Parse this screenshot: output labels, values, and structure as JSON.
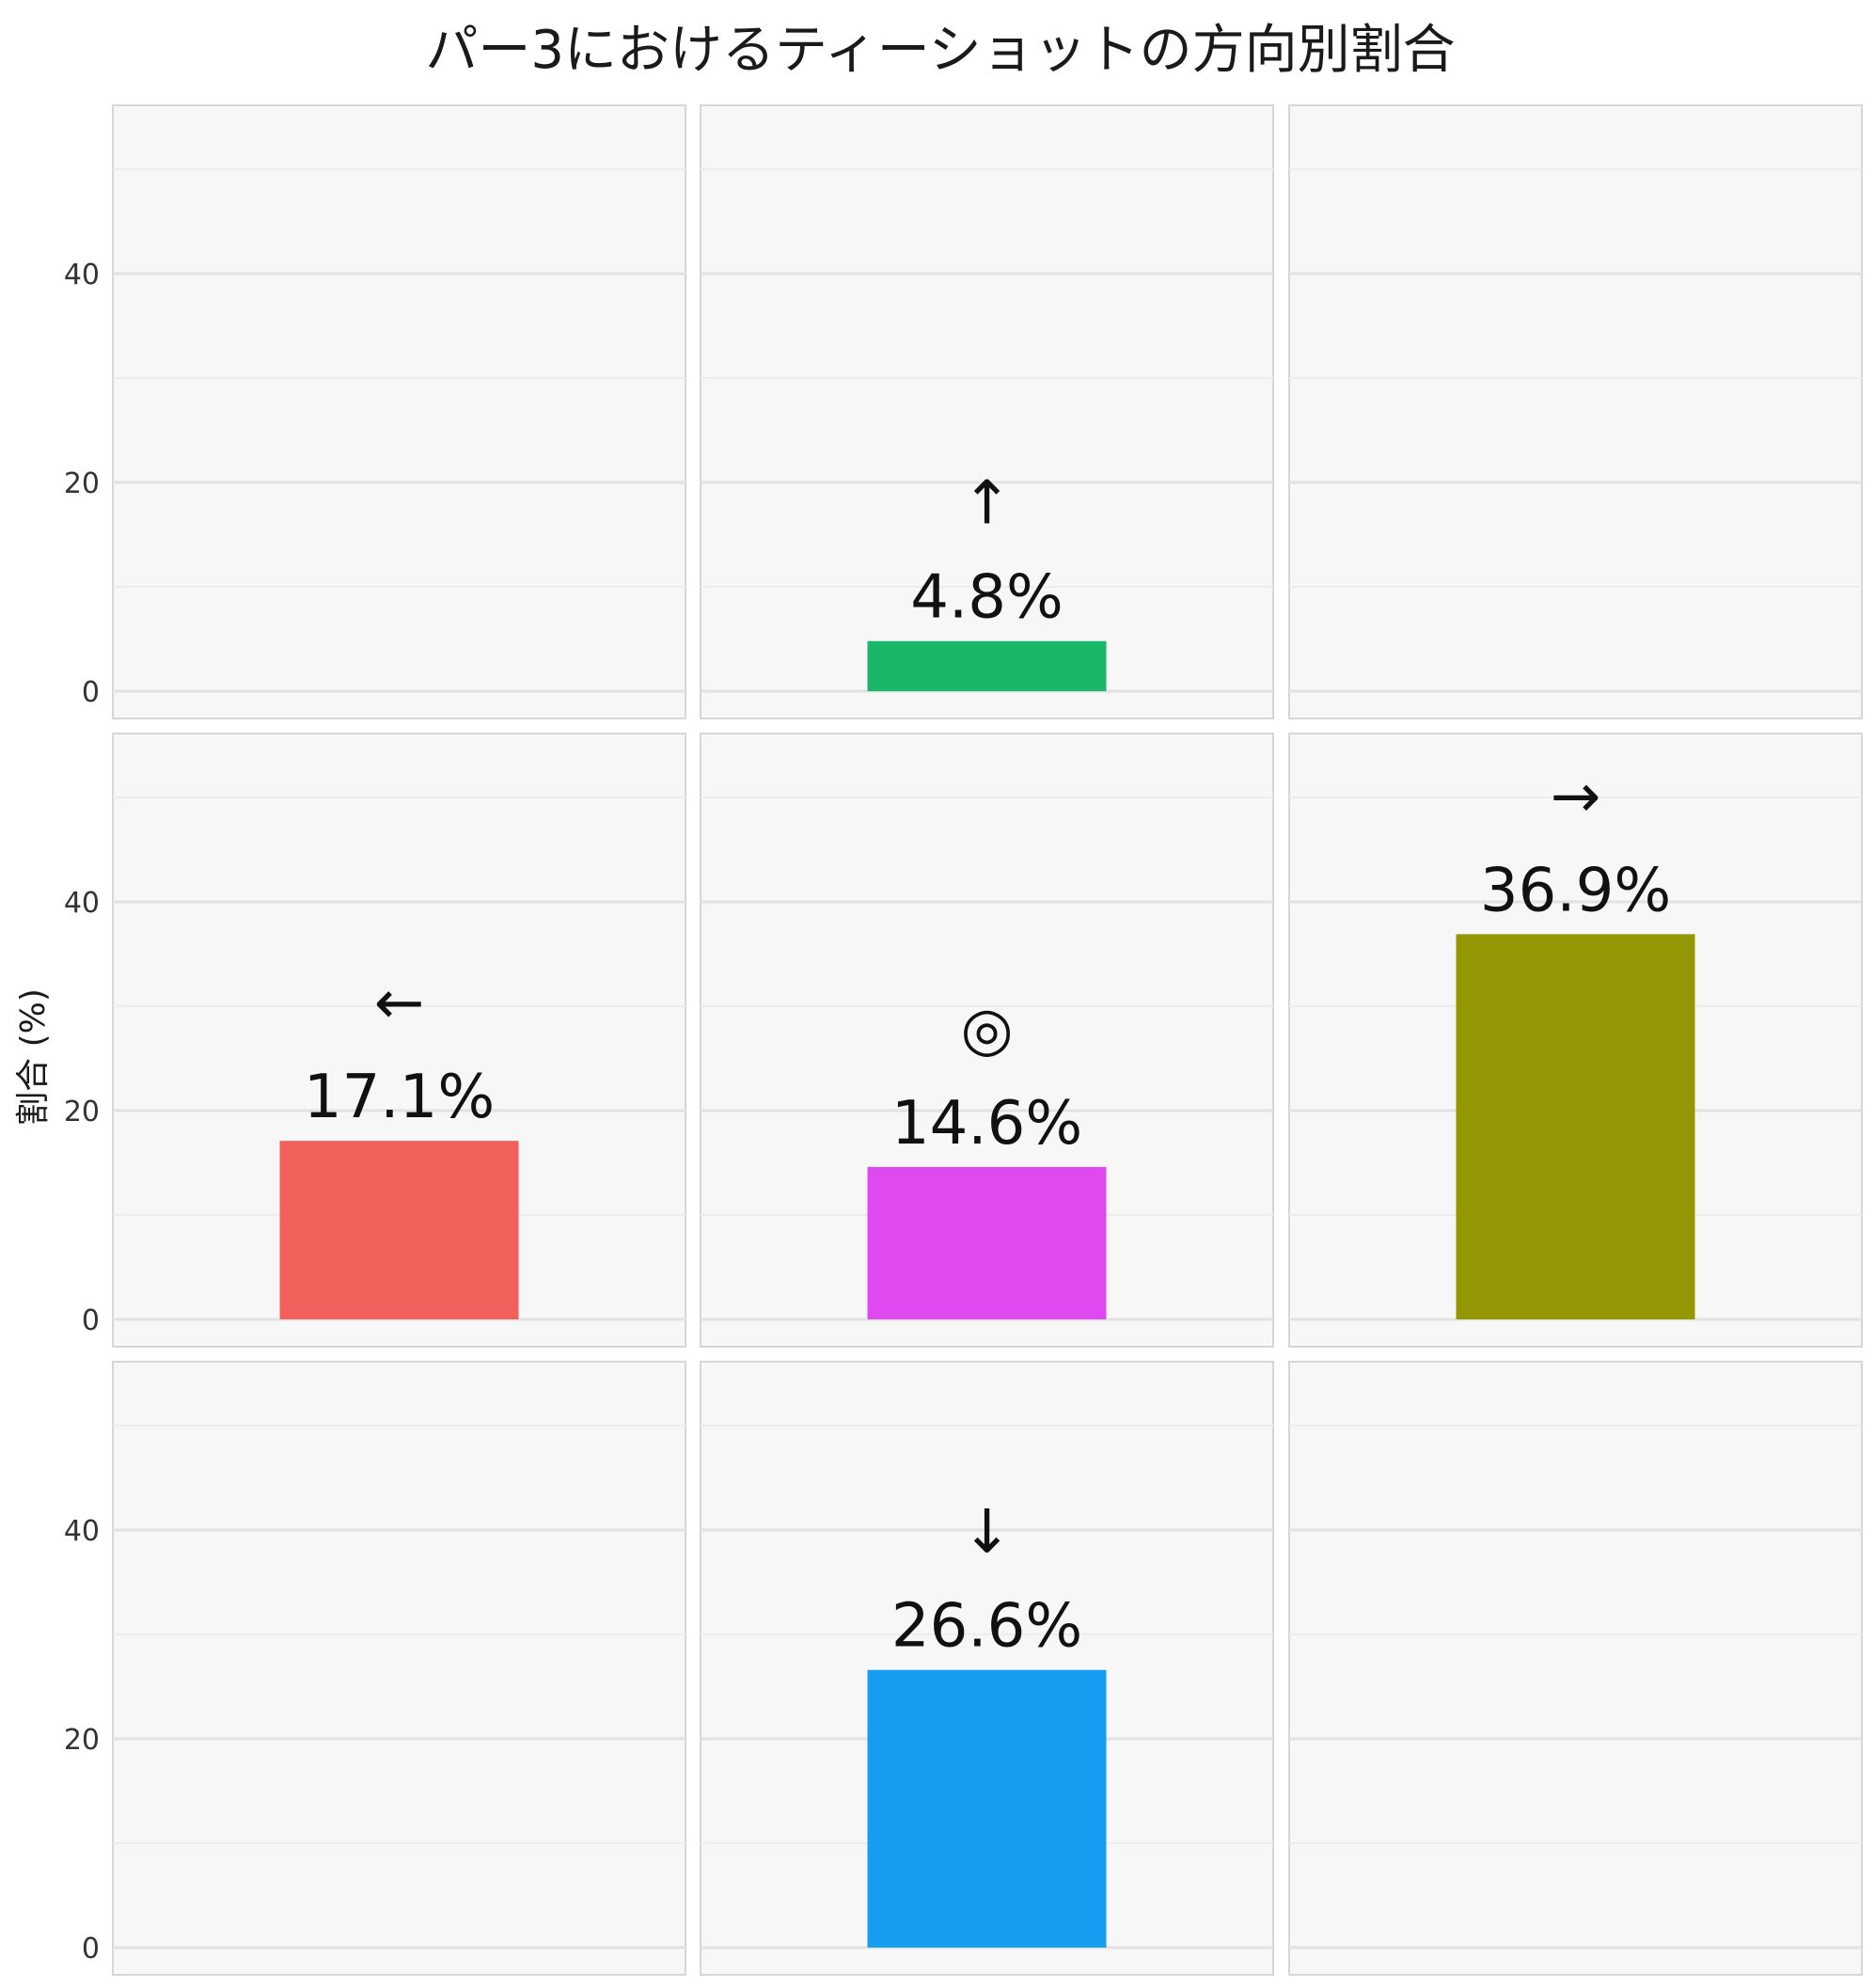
{
  "chart_data": {
    "type": "bar",
    "title": "パー3におけるティーショットの方向別割合",
    "ylabel": "割合 (%)",
    "ylim": [
      0,
      56
    ],
    "grid": true,
    "yticks": [
      "0",
      "20",
      "40"
    ],
    "panels": [
      {
        "row": 1,
        "col": 1,
        "symbol": "",
        "value": null,
        "label": "",
        "color": ""
      },
      {
        "row": 1,
        "col": 2,
        "symbol": "↑",
        "value": 4.8,
        "label": "4.8%",
        "color": "#1ab76b"
      },
      {
        "row": 1,
        "col": 3,
        "symbol": "",
        "value": null,
        "label": "",
        "color": ""
      },
      {
        "row": 2,
        "col": 1,
        "symbol": "←",
        "value": 17.1,
        "label": "17.1%",
        "color": "#f2605b"
      },
      {
        "row": 2,
        "col": 2,
        "symbol": "◎",
        "value": 14.6,
        "label": "14.6%",
        "color": "#de49f0"
      },
      {
        "row": 2,
        "col": 3,
        "symbol": "→",
        "value": 36.9,
        "label": "36.9%",
        "color": "#939703"
      },
      {
        "row": 3,
        "col": 1,
        "symbol": "",
        "value": null,
        "label": "",
        "color": ""
      },
      {
        "row": 3,
        "col": 2,
        "symbol": "↓",
        "value": 26.6,
        "label": "26.6%",
        "color": "#169ff0"
      },
      {
        "row": 3,
        "col": 3,
        "symbol": "",
        "value": null,
        "label": "",
        "color": ""
      }
    ]
  }
}
